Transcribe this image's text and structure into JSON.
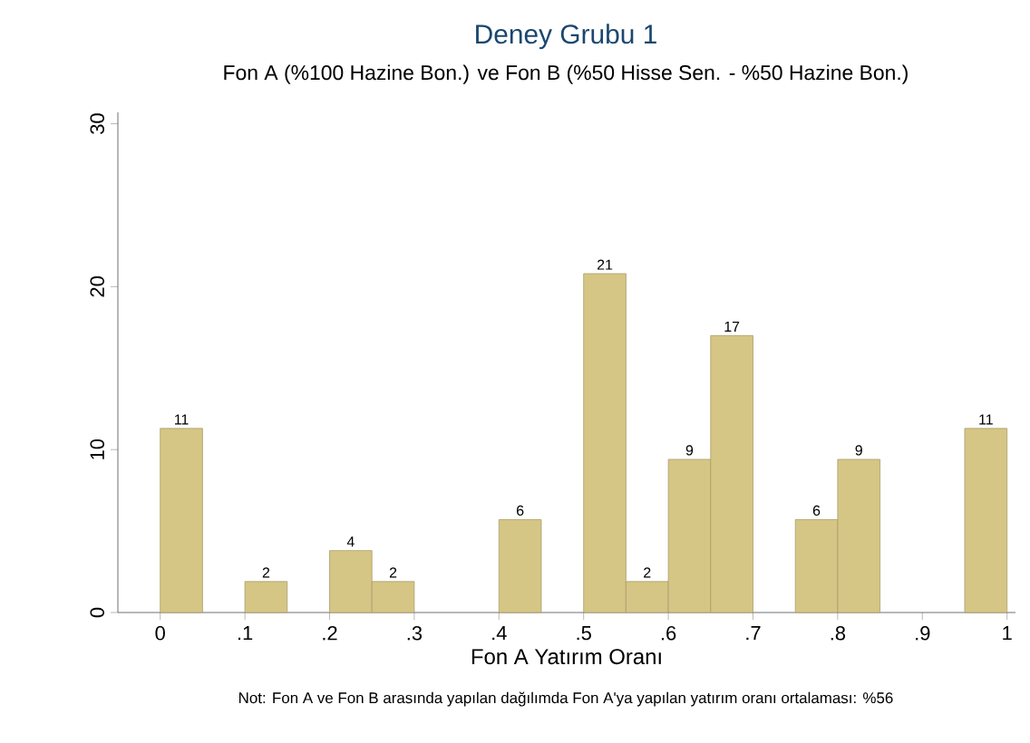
{
  "chart_data": {
    "type": "histogram",
    "title": "Deney Grubu 1",
    "subtitle": "Fon A (%100 Hazine Bon.) ve Fon B (%50 Hisse Sen. - %50 Hazine Bon.)",
    "xlabel": "Fon A Yatırım Oranı",
    "bins": [
      0,
      0.05,
      0.1,
      0.15,
      0.2,
      0.25,
      0.3,
      0.35,
      0.4,
      0.45,
      0.5,
      0.55,
      0.6,
      0.65,
      0.7,
      0.75,
      0.8,
      0.85,
      0.9,
      0.95,
      1.0
    ],
    "values": [
      11.3,
      0,
      1.9,
      0,
      3.8,
      1.9,
      0,
      0,
      5.7,
      0,
      20.8,
      1.9,
      9.4,
      17.0,
      0,
      5.7,
      9.4,
      0,
      0,
      11.3
    ],
    "value_labels": [
      "11",
      null,
      "2",
      null,
      "4",
      "2",
      null,
      null,
      "6",
      null,
      "21",
      "2",
      "9",
      "17",
      null,
      "6",
      "9",
      null,
      null,
      "11"
    ],
    "color": "#d5c685",
    "xlim": [
      -0.05,
      1.01
    ],
    "ylim": [
      0,
      30.7
    ],
    "xticks": [
      {
        "value": 0,
        "label": "0"
      },
      {
        "value": 0.1,
        "label": ".1"
      },
      {
        "value": 0.2,
        "label": ".2"
      },
      {
        "value": 0.3,
        "label": ".3"
      },
      {
        "value": 0.4,
        "label": ".4"
      },
      {
        "value": 0.5,
        "label": ".5"
      },
      {
        "value": 0.6,
        "label": ".6"
      },
      {
        "value": 0.7,
        "label": ".7"
      },
      {
        "value": 0.8,
        "label": ".8"
      },
      {
        "value": 0.9,
        "label": ".9"
      },
      {
        "value": 1,
        "label": "1"
      }
    ],
    "yticks": [
      0,
      10,
      20,
      30
    ],
    "grid": false,
    "annotations": [
      "Not: Fon A ve Fon B arasında yapılan dağılımda Fon A'ya yapılan yatırım oranı ortalaması: %56"
    ]
  }
}
